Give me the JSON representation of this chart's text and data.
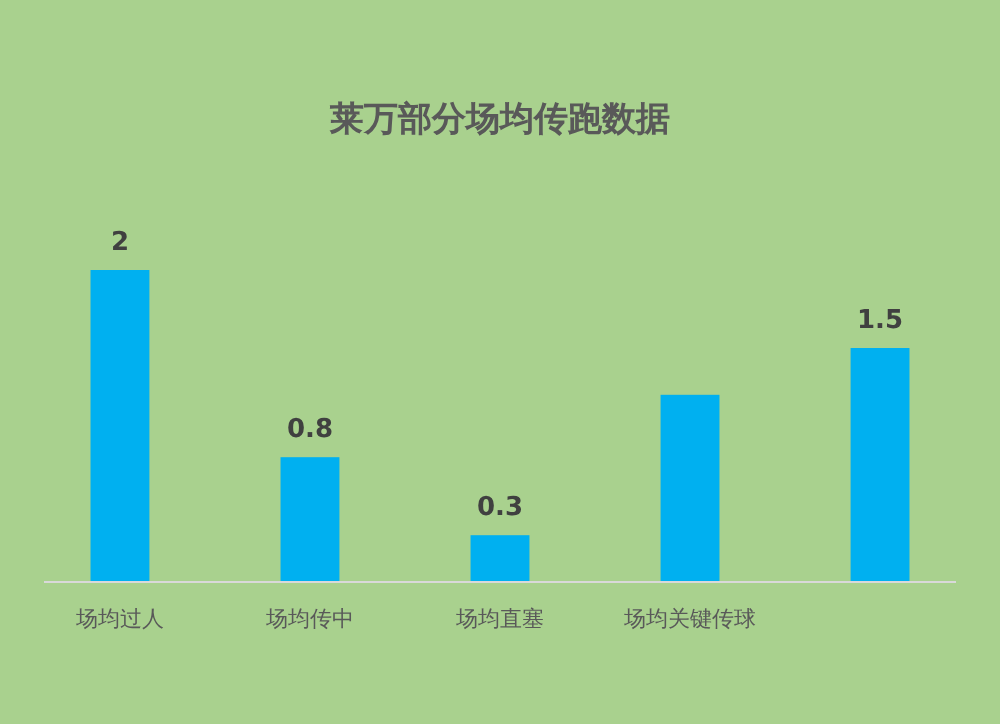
{
  "chart_data": {
    "type": "bar",
    "title": "莱万部分场均传跑数据",
    "categories": [
      "场均过人",
      "场均传中",
      "场均直塞",
      "场均关键传球",
      null
    ],
    "values": [
      2,
      0.8,
      0.3,
      1.2,
      1.5
    ],
    "value_labels": [
      "2",
      "0.8",
      "0.3",
      null,
      "1.5"
    ],
    "color": "#00b0f0"
  }
}
